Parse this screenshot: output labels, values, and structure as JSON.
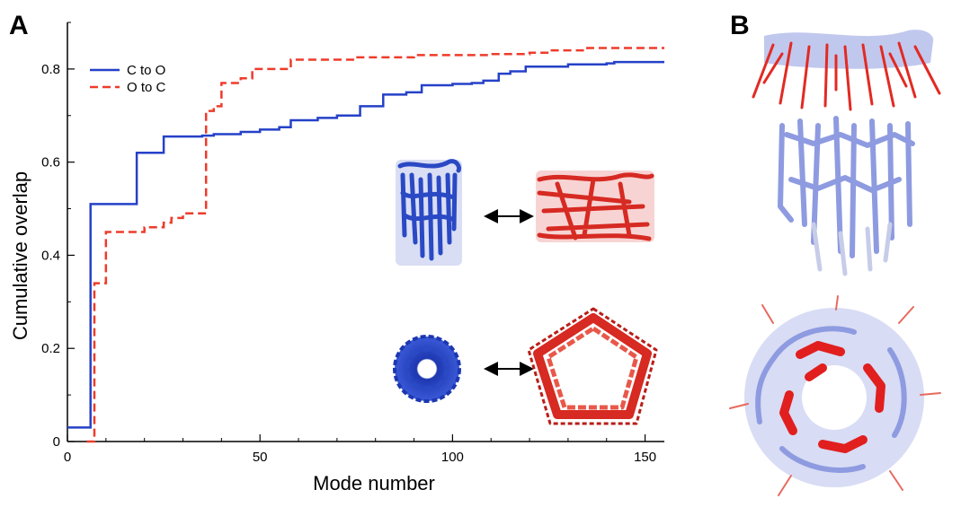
{
  "panels": {
    "a_label": "A",
    "b_label": "B"
  },
  "colors": {
    "c_to_o": "#2541c8",
    "o_to_c": "#ee3b2b",
    "protein_blue": "#2a49c4",
    "protein_red": "#d62a22",
    "protein_light": "#8e9be0"
  },
  "icons": {
    "closed_side": "protein-closed-side-icon",
    "open_side": "protein-open-side-icon",
    "closed_top": "protein-closed-top-icon",
    "open_top": "protein-open-top-icon",
    "arrow": "double-arrow-icon"
  },
  "chart_data": {
    "type": "line",
    "title": "",
    "xlabel": "Mode number",
    "ylabel": "Cumulative overlap",
    "xlim": [
      0,
      155
    ],
    "ylim": [
      0,
      0.9
    ],
    "xticks": [
      0,
      50,
      100,
      150
    ],
    "yticks": [
      0,
      0.2,
      0.4,
      0.6,
      0.8
    ],
    "xtick_labels": [
      "0",
      "50",
      "100",
      "150"
    ],
    "ytick_labels": [
      "0",
      "0.2",
      "0.4",
      "0.6",
      "0.8"
    ],
    "grid": false,
    "legend_position": "top-left",
    "series": [
      {
        "name": "C to O",
        "style": "solid",
        "color": "#2541c8",
        "points": [
          [
            0,
            0.03
          ],
          [
            5,
            0.03
          ],
          [
            6,
            0.51
          ],
          [
            17,
            0.51
          ],
          [
            18,
            0.62
          ],
          [
            24,
            0.62
          ],
          [
            25,
            0.655
          ],
          [
            35,
            0.657
          ],
          [
            38,
            0.66
          ],
          [
            45,
            0.665
          ],
          [
            50,
            0.67
          ],
          [
            55,
            0.675
          ],
          [
            58,
            0.69
          ],
          [
            65,
            0.695
          ],
          [
            70,
            0.7
          ],
          [
            76,
            0.72
          ],
          [
            80,
            0.72
          ],
          [
            82,
            0.745
          ],
          [
            88,
            0.75
          ],
          [
            92,
            0.765
          ],
          [
            100,
            0.768
          ],
          [
            105,
            0.77
          ],
          [
            108,
            0.775
          ],
          [
            112,
            0.79
          ],
          [
            115,
            0.795
          ],
          [
            119,
            0.805
          ],
          [
            125,
            0.805
          ],
          [
            130,
            0.81
          ],
          [
            140,
            0.812
          ],
          [
            142,
            0.815
          ],
          [
            155,
            0.815
          ]
        ]
      },
      {
        "name": "O to C",
        "style": "dashed",
        "color": "#ee3b2b",
        "points": [
          [
            5,
            0
          ],
          [
            6,
            0
          ],
          [
            7,
            0.34
          ],
          [
            9,
            0.34
          ],
          [
            10,
            0.45
          ],
          [
            20,
            0.46
          ],
          [
            25,
            0.47
          ],
          [
            27,
            0.48
          ],
          [
            30,
            0.49
          ],
          [
            35,
            0.49
          ],
          [
            36,
            0.71
          ],
          [
            38,
            0.72
          ],
          [
            40,
            0.77
          ],
          [
            45,
            0.78
          ],
          [
            48,
            0.8
          ],
          [
            55,
            0.8
          ],
          [
            58,
            0.82
          ],
          [
            65,
            0.82
          ],
          [
            75,
            0.825
          ],
          [
            90,
            0.83
          ],
          [
            100,
            0.83
          ],
          [
            110,
            0.832
          ],
          [
            120,
            0.835
          ],
          [
            125,
            0.84
          ],
          [
            135,
            0.845
          ],
          [
            155,
            0.845
          ]
        ]
      }
    ]
  }
}
